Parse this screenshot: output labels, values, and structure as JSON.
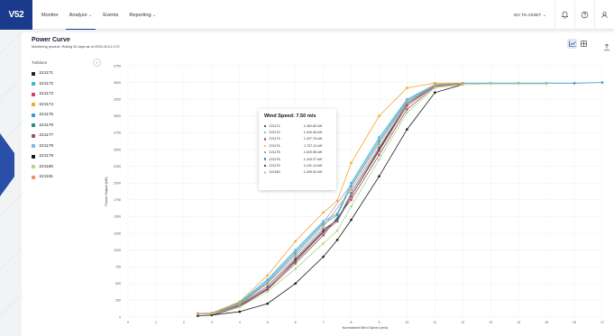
{
  "app": {
    "logo": "V52",
    "nav": [
      {
        "label": "Monitor",
        "has_menu": false
      },
      {
        "label": "Analyze",
        "has_menu": true,
        "active": true
      },
      {
        "label": "Events",
        "has_menu": false
      },
      {
        "label": "Reporting",
        "has_menu": true
      }
    ],
    "goto_label": "GO TO ASSET",
    "icons": [
      "bell-icon",
      "help-icon",
      "user-icon"
    ],
    "brand_color": "#1b3a8c"
  },
  "page": {
    "title": "Power Curve",
    "subtitle": "Monitoring product: Rolling 30 days as of 2025-09-21 UTC",
    "view_toggle": [
      "line-chart-icon",
      "grid-icon"
    ],
    "export_icon": "export-icon"
  },
  "sidebar": {
    "title": "Turbines",
    "turbines": [
      {
        "name": "221171",
        "color": "#222222"
      },
      {
        "name": "221172",
        "color": "#2bbcd4"
      },
      {
        "name": "221173",
        "color": "#d63c6a"
      },
      {
        "name": "221174",
        "color": "#f4a629"
      },
      {
        "name": "221175",
        "color": "#3a9ad9"
      },
      {
        "name": "221176",
        "color": "#2a8a8a"
      },
      {
        "name": "221177",
        "color": "#8b5a5a"
      },
      {
        "name": "221178",
        "color": "#7fb3e8"
      },
      {
        "name": "221179",
        "color": "#1a1a1a"
      },
      {
        "name": "221180",
        "color": "#a8d88a"
      },
      {
        "name": "221181",
        "color": "#f0925a"
      }
    ]
  },
  "tooltip": {
    "title": "Wind Speed: 7.50 m/s",
    "rows": [
      {
        "name": "221171:",
        "value": "1,462.83 kW",
        "color": "#222222"
      },
      {
        "name": "221172:",
        "value": "1,544.46 kW",
        "color": "#2bbcd4"
      },
      {
        "name": "221173:",
        "value": "1,427.76 kW",
        "color": "#d63c6a"
      },
      {
        "name": "221174:",
        "value": "1,737.11 kW",
        "color": "#f4a629"
      },
      {
        "name": "221175:",
        "value": "1,520.98 kW",
        "color": "#3a9ad9"
      },
      {
        "name": "221176:",
        "value": "1,444.27 kW",
        "color": "#2a8a8a"
      },
      {
        "name": "221179:",
        "value": "1,151.14 kW",
        "color": "#1a1a1a"
      },
      {
        "name": "221180:",
        "value": "1,290.00 kW",
        "color": "#a8d88a"
      }
    ]
  },
  "chart_data": {
    "type": "line",
    "xlabel": "Normalized Wind Speed (m/s)",
    "ylabel": "Power Output (kW)",
    "xlim": [
      0,
      17
    ],
    "ylim": [
      0,
      3750
    ],
    "x_ticks": [
      0,
      1,
      2,
      3,
      4,
      5,
      6,
      7,
      8,
      9,
      10,
      11,
      12,
      13,
      14,
      15,
      16,
      17
    ],
    "y_ticks": [
      0,
      250,
      500,
      750,
      1000,
      1250,
      1500,
      1750,
      2000,
      2250,
      2500,
      2750,
      3000,
      3250,
      3500,
      3750
    ],
    "grid": true,
    "series": [
      {
        "name": "221171",
        "color": "#222222",
        "x": [
          3,
          4,
          5,
          6,
          7,
          7.5,
          8,
          9,
          10,
          11,
          12
        ],
        "values": [
          30,
          150,
          420,
          850,
          1280,
          1462,
          1800,
          2500,
          3180,
          3450,
          3480
        ]
      },
      {
        "name": "221172",
        "color": "#2bbcd4",
        "x": [
          2.5,
          3,
          4,
          5,
          6,
          7,
          7.5,
          8,
          9,
          10,
          11,
          12
        ],
        "values": [
          55,
          60,
          220,
          560,
          1000,
          1430,
          1544,
          2000,
          2680,
          3250,
          3470,
          3490
        ]
      },
      {
        "name": "221173",
        "color": "#d63c6a",
        "x": [
          2.5,
          3,
          4,
          5,
          6,
          7,
          7.5,
          8,
          9,
          10,
          11,
          12
        ],
        "values": [
          50,
          55,
          170,
          430,
          830,
          1260,
          1427,
          1800,
          2480,
          3150,
          3450,
          3480
        ]
      },
      {
        "name": "221174",
        "color": "#f4a629",
        "x": [
          2.5,
          3,
          4,
          5,
          6,
          7,
          7.5,
          8,
          9,
          10,
          11,
          12
        ],
        "values": [
          50,
          60,
          230,
          620,
          1130,
          1560,
          1737,
          2300,
          3000,
          3420,
          3490,
          3490
        ]
      },
      {
        "name": "221175",
        "color": "#3a9ad9",
        "x": [
          2.5,
          3,
          4,
          5,
          6,
          7,
          7.5,
          8,
          9,
          10,
          11,
          12,
          13,
          14,
          15,
          16,
          17
        ],
        "values": [
          50,
          55,
          200,
          520,
          950,
          1390,
          1520,
          1950,
          2620,
          3220,
          3460,
          3490,
          3490,
          3490,
          3490,
          3490,
          3500
        ]
      },
      {
        "name": "221176",
        "color": "#2a8a8a",
        "x": [
          2.5,
          3,
          4,
          5,
          6,
          7,
          7.5,
          8,
          9,
          10,
          11,
          12
        ],
        "values": [
          50,
          55,
          180,
          460,
          880,
          1310,
          1444,
          1850,
          2530,
          3180,
          3450,
          3480
        ]
      },
      {
        "name": "221177",
        "color": "#8b5a5a",
        "x": [
          2.5,
          3,
          4,
          5,
          6,
          7,
          8,
          9,
          10,
          11,
          12
        ],
        "values": [
          48,
          52,
          160,
          410,
          800,
          1220,
          1750,
          2420,
          3100,
          3440,
          3480
        ]
      },
      {
        "name": "221178",
        "color": "#7fb3e8",
        "x": [
          2.5,
          3,
          4,
          5,
          6,
          7,
          8,
          9,
          10,
          11,
          12
        ],
        "values": [
          52,
          58,
          210,
          540,
          980,
          1410,
          1980,
          2650,
          3230,
          3465,
          3490
        ]
      },
      {
        "name": "221179",
        "color": "#1a1a1a",
        "x": [
          2.5,
          3,
          4,
          5,
          6,
          7,
          7.5,
          8,
          9,
          10,
          11,
          12
        ],
        "values": [
          20,
          30,
          80,
          200,
          500,
          900,
          1151,
          1450,
          2100,
          2800,
          3350,
          3470
        ]
      },
      {
        "name": "221180",
        "color": "#a8d88a",
        "x": [
          2.5,
          3,
          4,
          5,
          6,
          7,
          7.5,
          8,
          9,
          10,
          11,
          12,
          13,
          14,
          15
        ],
        "values": [
          45,
          50,
          150,
          380,
          720,
          1100,
          1290,
          1650,
          2350,
          3050,
          3420,
          3470,
          3480,
          3480,
          3480
        ]
      },
      {
        "name": "221181",
        "color": "#f0925a",
        "x": [
          2.5,
          3,
          4,
          5,
          6,
          7,
          8,
          9,
          10,
          11,
          12
        ],
        "values": [
          50,
          55,
          190,
          500,
          920,
          1350,
          1900,
          2580,
          3200,
          3455,
          3485
        ]
      }
    ]
  }
}
